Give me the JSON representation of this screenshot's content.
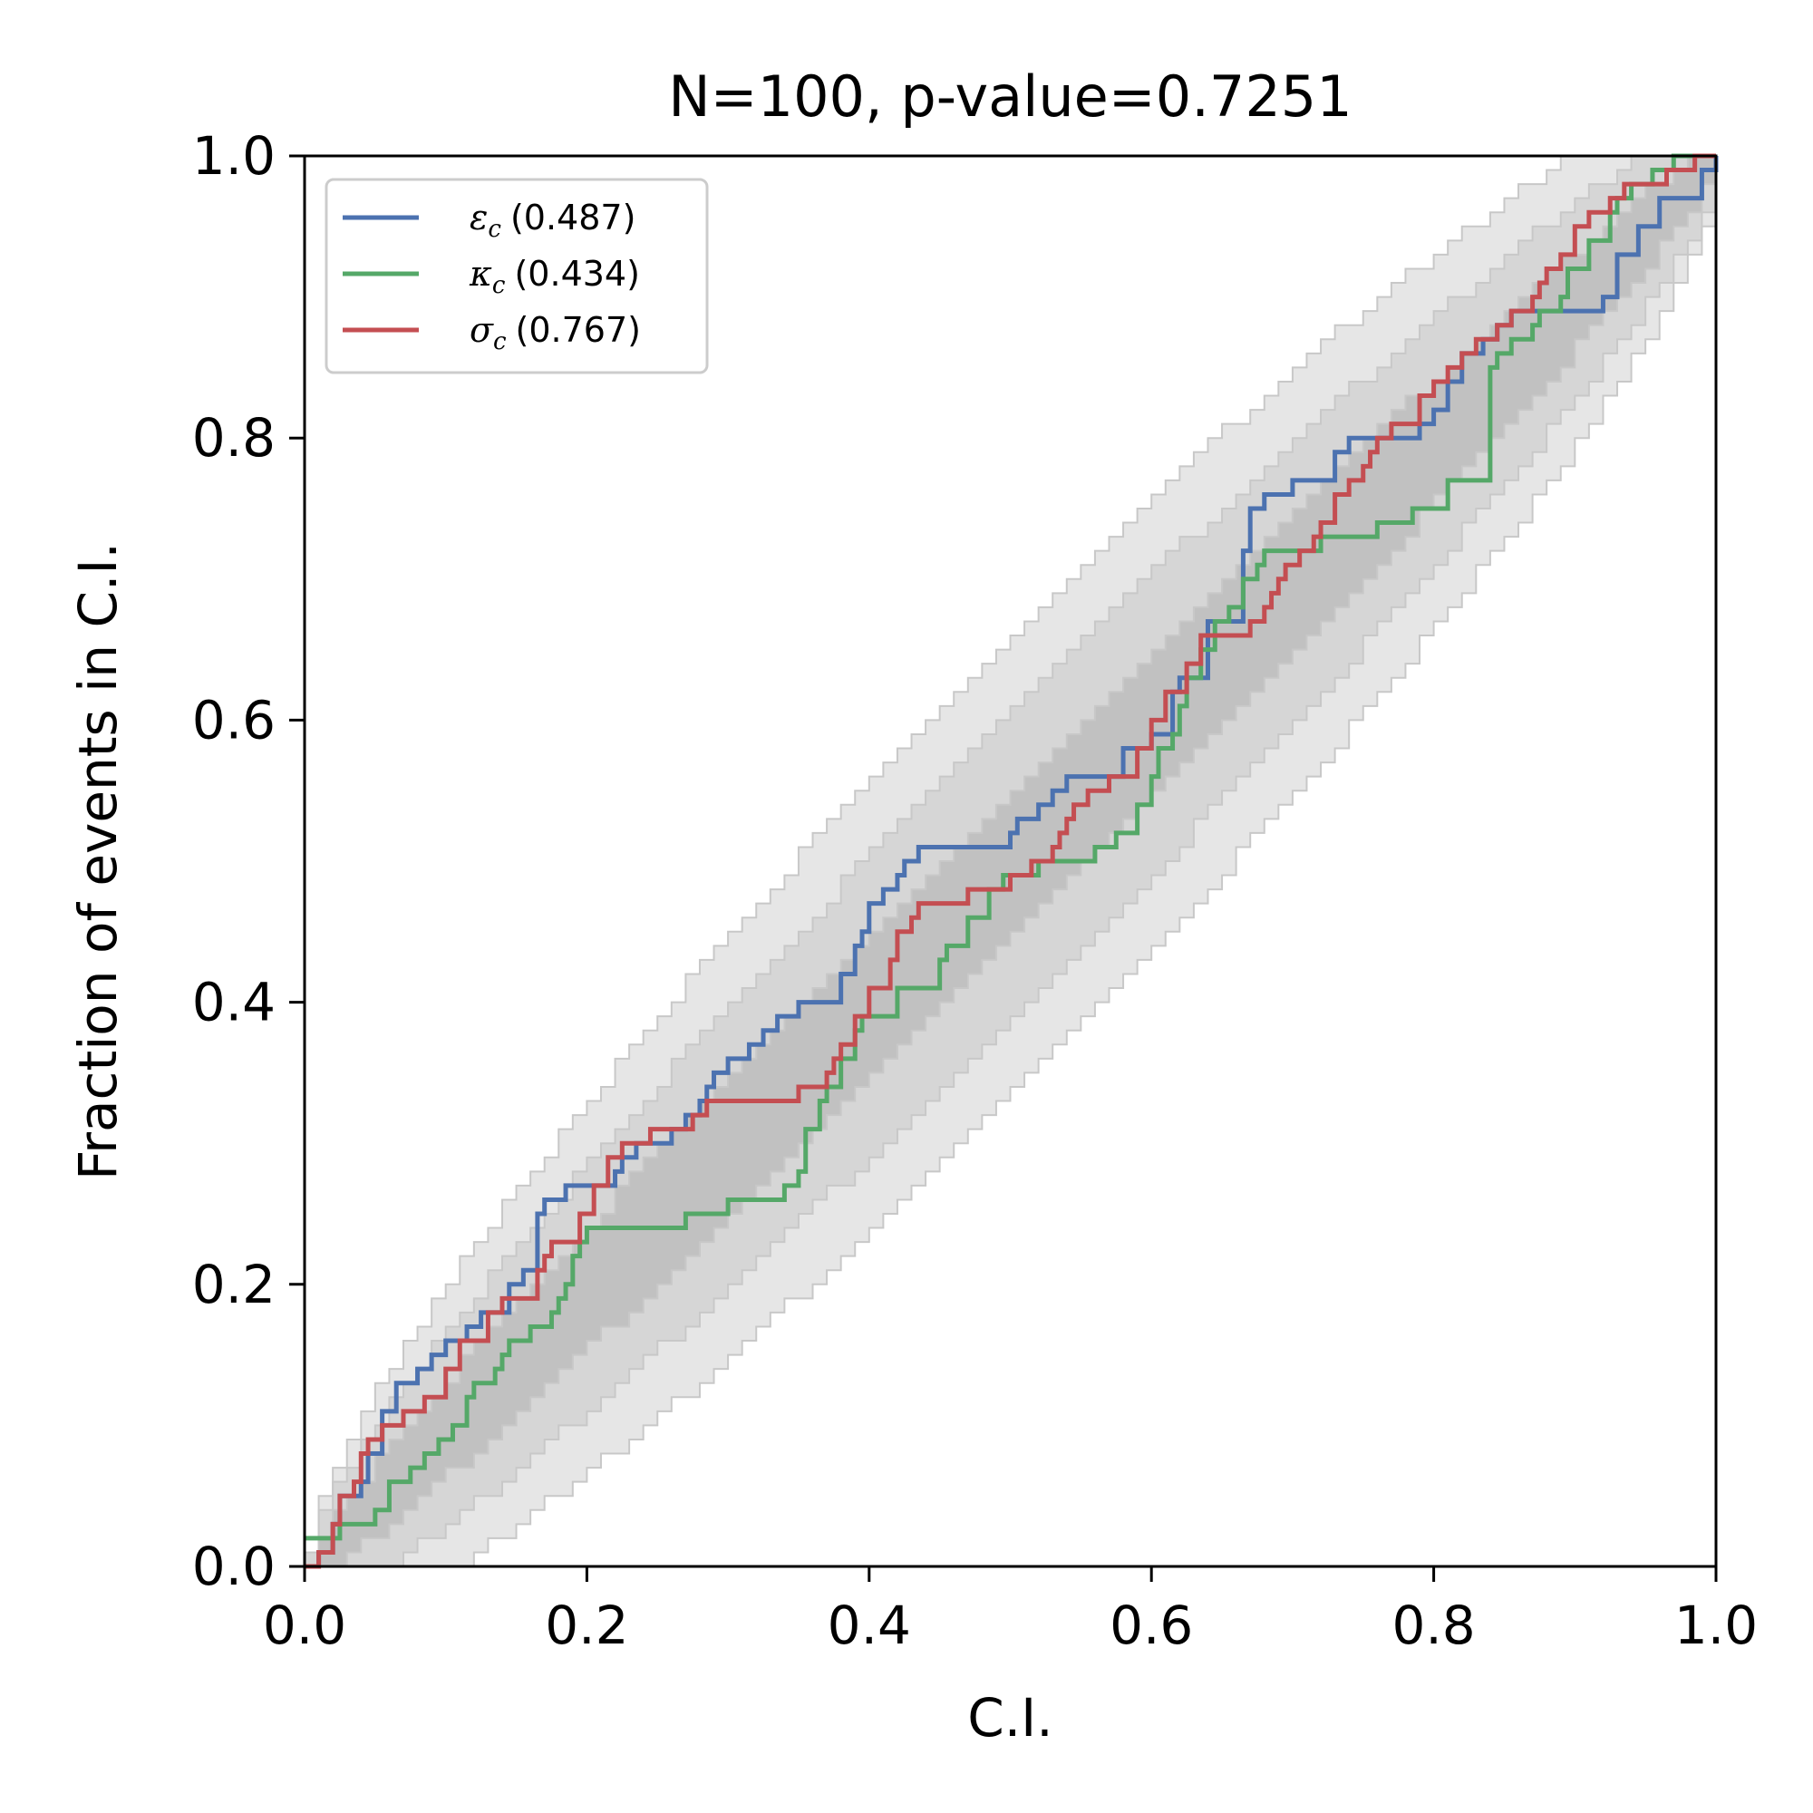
{
  "chart_data": {
    "type": "line",
    "title": "N=100, p-value=0.7251",
    "xlabel": "C.I.",
    "ylabel": "Fraction of events in C.I.",
    "xlim": [
      0.0,
      1.0
    ],
    "ylim": [
      0.0,
      1.0
    ],
    "xticks": [
      "0.0",
      "0.2",
      "0.4",
      "0.6",
      "0.8",
      "1.0"
    ],
    "yticks": [
      "0.0",
      "0.2",
      "0.4",
      "0.6",
      "0.8",
      "1.0"
    ],
    "grid": false,
    "legend_position": "top-left",
    "confidence_bands": {
      "description_levels": [
        "1-sigma",
        "2-sigma",
        "3-sigma"
      ],
      "color": "#b8b8b8",
      "N": 100
    },
    "series": [
      {
        "name": "ε_c (0.487)",
        "symbol": "ε",
        "subscript": "c",
        "value_label": "(0.487)",
        "color": "#4c72b0",
        "x": [
          0.0,
          0.01,
          0.02,
          0.025,
          0.04,
          0.045,
          0.055,
          0.065,
          0.08,
          0.09,
          0.1,
          0.115,
          0.125,
          0.145,
          0.155,
          0.165,
          0.17,
          0.185,
          0.19,
          0.22,
          0.225,
          0.235,
          0.26,
          0.27,
          0.28,
          0.285,
          0.29,
          0.3,
          0.315,
          0.325,
          0.335,
          0.35,
          0.375,
          0.38,
          0.39,
          0.395,
          0.4,
          0.41,
          0.42,
          0.425,
          0.435,
          0.44,
          0.45,
          0.5,
          0.505,
          0.52,
          0.53,
          0.54,
          0.57,
          0.58,
          0.6,
          0.615,
          0.62,
          0.64,
          0.665,
          0.67,
          0.68,
          0.7,
          0.73,
          0.74,
          0.79,
          0.8,
          0.81,
          0.82,
          0.835,
          0.845,
          0.855,
          0.87,
          0.9,
          0.92,
          0.93,
          0.945,
          0.96,
          0.99,
          1.0
        ],
        "y": [
          0.0,
          0.01,
          0.03,
          0.05,
          0.06,
          0.08,
          0.11,
          0.13,
          0.14,
          0.15,
          0.16,
          0.17,
          0.18,
          0.2,
          0.21,
          0.25,
          0.26,
          0.27,
          0.27,
          0.28,
          0.29,
          0.3,
          0.31,
          0.32,
          0.33,
          0.34,
          0.35,
          0.36,
          0.37,
          0.38,
          0.39,
          0.4,
          0.4,
          0.42,
          0.44,
          0.45,
          0.47,
          0.48,
          0.49,
          0.5,
          0.51,
          0.51,
          0.51,
          0.52,
          0.53,
          0.54,
          0.55,
          0.56,
          0.56,
          0.58,
          0.59,
          0.62,
          0.63,
          0.67,
          0.72,
          0.75,
          0.76,
          0.77,
          0.79,
          0.8,
          0.81,
          0.82,
          0.84,
          0.86,
          0.87,
          0.88,
          0.89,
          0.89,
          0.89,
          0.9,
          0.93,
          0.95,
          0.97,
          0.99,
          1.0
        ]
      },
      {
        "name": "κ_c (0.434)",
        "symbol": "κ",
        "subscript": "c",
        "value_label": "(0.434)",
        "color": "#55a868",
        "x": [
          0.0,
          0.025,
          0.05,
          0.06,
          0.075,
          0.085,
          0.095,
          0.105,
          0.115,
          0.12,
          0.135,
          0.14,
          0.145,
          0.15,
          0.155,
          0.16,
          0.175,
          0.18,
          0.185,
          0.19,
          0.195,
          0.2,
          0.21,
          0.27,
          0.3,
          0.34,
          0.35,
          0.355,
          0.365,
          0.37,
          0.38,
          0.39,
          0.395,
          0.42,
          0.45,
          0.455,
          0.47,
          0.485,
          0.495,
          0.5,
          0.52,
          0.56,
          0.575,
          0.59,
          0.6,
          0.605,
          0.615,
          0.62,
          0.625,
          0.635,
          0.645,
          0.655,
          0.665,
          0.675,
          0.68,
          0.72,
          0.76,
          0.785,
          0.81,
          0.84,
          0.845,
          0.855,
          0.87,
          0.875,
          0.89,
          0.895,
          0.91,
          0.925,
          0.93,
          0.94,
          0.955,
          0.97,
          1.0
        ],
        "y": [
          0.02,
          0.03,
          0.04,
          0.06,
          0.07,
          0.08,
          0.09,
          0.1,
          0.12,
          0.13,
          0.14,
          0.15,
          0.16,
          0.16,
          0.16,
          0.17,
          0.18,
          0.19,
          0.2,
          0.22,
          0.23,
          0.24,
          0.24,
          0.25,
          0.26,
          0.27,
          0.28,
          0.31,
          0.33,
          0.34,
          0.36,
          0.38,
          0.39,
          0.41,
          0.43,
          0.44,
          0.46,
          0.48,
          0.49,
          0.49,
          0.5,
          0.51,
          0.52,
          0.54,
          0.56,
          0.58,
          0.59,
          0.61,
          0.63,
          0.65,
          0.67,
          0.68,
          0.7,
          0.71,
          0.72,
          0.73,
          0.74,
          0.75,
          0.77,
          0.85,
          0.86,
          0.87,
          0.88,
          0.89,
          0.9,
          0.92,
          0.94,
          0.96,
          0.97,
          0.98,
          0.99,
          1.0,
          1.0
        ]
      },
      {
        "name": "σ_c (0.767)",
        "symbol": "σ",
        "subscript": "c",
        "value_label": "(0.767)",
        "color": "#c44e52",
        "x": [
          0.0,
          0.01,
          0.02,
          0.025,
          0.035,
          0.04,
          0.045,
          0.055,
          0.07,
          0.085,
          0.1,
          0.11,
          0.13,
          0.14,
          0.165,
          0.17,
          0.175,
          0.195,
          0.205,
          0.215,
          0.225,
          0.245,
          0.275,
          0.285,
          0.3,
          0.35,
          0.37,
          0.375,
          0.38,
          0.39,
          0.4,
          0.415,
          0.42,
          0.43,
          0.435,
          0.445,
          0.47,
          0.5,
          0.515,
          0.53,
          0.535,
          0.54,
          0.545,
          0.555,
          0.57,
          0.59,
          0.6,
          0.61,
          0.625,
          0.635,
          0.65,
          0.67,
          0.68,
          0.685,
          0.69,
          0.695,
          0.705,
          0.715,
          0.72,
          0.73,
          0.74,
          0.75,
          0.755,
          0.76,
          0.77,
          0.79,
          0.8,
          0.81,
          0.82,
          0.83,
          0.845,
          0.855,
          0.87,
          0.875,
          0.88,
          0.89,
          0.9,
          0.91,
          0.925,
          0.935,
          0.955,
          0.965,
          0.975,
          0.985,
          0.99,
          1.0
        ],
        "y": [
          0.0,
          0.01,
          0.03,
          0.05,
          0.06,
          0.08,
          0.09,
          0.1,
          0.11,
          0.12,
          0.14,
          0.16,
          0.18,
          0.19,
          0.21,
          0.22,
          0.23,
          0.25,
          0.27,
          0.29,
          0.3,
          0.31,
          0.32,
          0.33,
          0.33,
          0.34,
          0.35,
          0.36,
          0.37,
          0.39,
          0.41,
          0.43,
          0.45,
          0.46,
          0.47,
          0.47,
          0.48,
          0.49,
          0.5,
          0.51,
          0.52,
          0.53,
          0.54,
          0.55,
          0.56,
          0.58,
          0.6,
          0.62,
          0.64,
          0.66,
          0.66,
          0.67,
          0.68,
          0.69,
          0.7,
          0.71,
          0.72,
          0.73,
          0.74,
          0.76,
          0.77,
          0.78,
          0.79,
          0.8,
          0.81,
          0.83,
          0.84,
          0.85,
          0.86,
          0.87,
          0.88,
          0.89,
          0.9,
          0.91,
          0.92,
          0.93,
          0.95,
          0.96,
          0.97,
          0.98,
          0.98,
          0.99,
          0.99,
          1.0,
          1.0,
          1.0
        ]
      }
    ]
  }
}
